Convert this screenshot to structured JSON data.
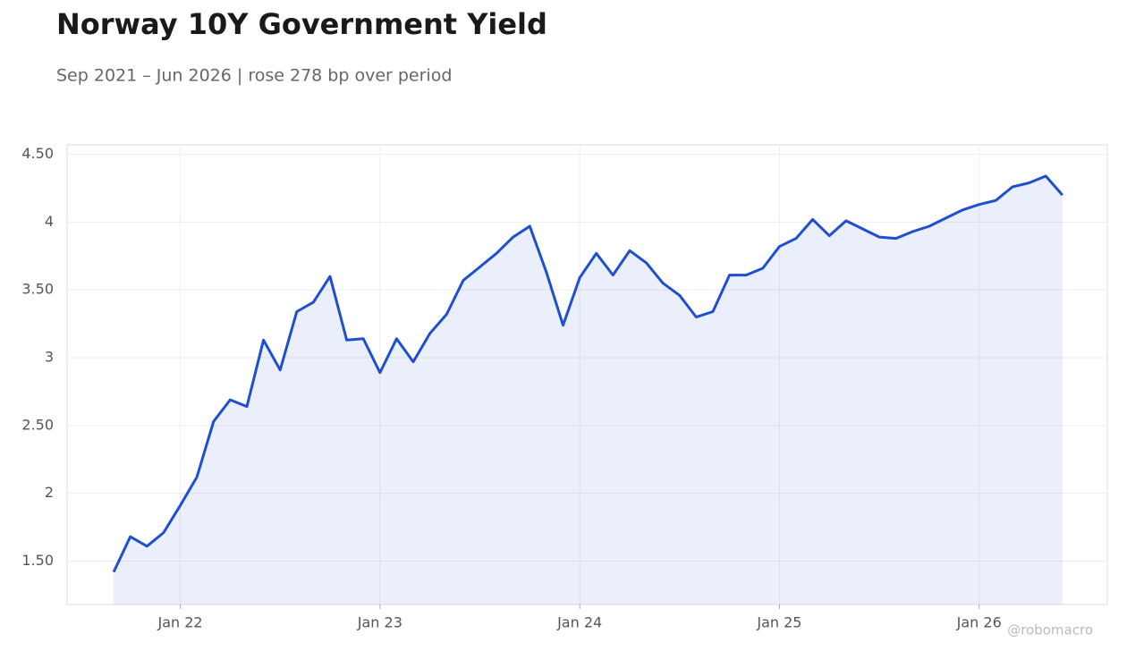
{
  "chart_data": {
    "type": "line",
    "title": "Norway 10Y Government Yield",
    "subtitle": "Sep 2021 – Jun 2026 | rose 278 bp over period",
    "watermark": "@robomacro",
    "color": "#1f4fd1",
    "area": true,
    "grid": true,
    "x": [
      "2021-09",
      "2021-10",
      "2021-11",
      "2021-12",
      "2022-01",
      "2022-02",
      "2022-03",
      "2022-04",
      "2022-05",
      "2022-06",
      "2022-07",
      "2022-08",
      "2022-09",
      "2022-10",
      "2022-11",
      "2022-12",
      "2023-01",
      "2023-02",
      "2023-03",
      "2023-04",
      "2023-05",
      "2023-06",
      "2023-07",
      "2023-08",
      "2023-09",
      "2023-10",
      "2023-11",
      "2023-12",
      "2024-01",
      "2024-02",
      "2024-03",
      "2024-04",
      "2024-05",
      "2024-06",
      "2024-07",
      "2024-08",
      "2024-09",
      "2024-10",
      "2024-11",
      "2024-12",
      "2025-01",
      "2025-02",
      "2025-03",
      "2025-04",
      "2025-05",
      "2025-06",
      "2025-07",
      "2025-08",
      "2025-09",
      "2025-10",
      "2025-11",
      "2025-12",
      "2026-01",
      "2026-02",
      "2026-03",
      "2026-04",
      "2026-05",
      "2026-06"
    ],
    "values": [
      1.42,
      1.68,
      1.61,
      1.71,
      1.91,
      2.12,
      2.53,
      2.69,
      2.64,
      3.13,
      2.91,
      3.34,
      3.41,
      3.6,
      3.13,
      3.14,
      2.89,
      3.14,
      2.97,
      3.18,
      3.32,
      3.57,
      3.67,
      3.77,
      3.89,
      3.97,
      3.63,
      3.24,
      3.59,
      3.77,
      3.61,
      3.79,
      3.7,
      3.55,
      3.46,
      3.3,
      3.34,
      3.61,
      3.61,
      3.66,
      3.82,
      3.88,
      4.02,
      3.9,
      4.01,
      3.95,
      3.89,
      3.88,
      3.93,
      3.97,
      4.03,
      4.09,
      4.13,
      4.16,
      4.26,
      4.29,
      4.34,
      4.2
    ],
    "ylim": [
      1.18,
      4.57
    ],
    "yticks": [
      {
        "value": 1.5,
        "label": "1.50"
      },
      2,
      {
        "value": 2.5,
        "label": "2.50"
      },
      3,
      {
        "value": 3.5,
        "label": "3.50"
      },
      4,
      {
        "value": 4.5,
        "label": "4.50"
      }
    ],
    "xticks": [
      {
        "value": "2022-01",
        "label": "Jan 22"
      },
      {
        "value": "2023-01",
        "label": "Jan 23"
      },
      {
        "value": "2024-01",
        "label": "Jan 24"
      },
      {
        "value": "2025-01",
        "label": "Jan 25"
      },
      {
        "value": "2026-01",
        "label": "Jan 26"
      }
    ]
  }
}
